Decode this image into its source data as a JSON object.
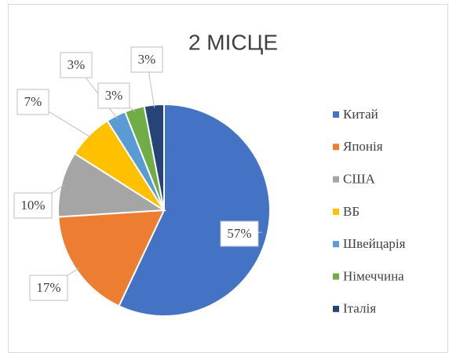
{
  "chart_data": {
    "type": "pie",
    "title": "2 МІСЦЕ",
    "categories": [
      "Китай",
      "Японія",
      "США",
      "ВБ",
      "Швейцарія",
      "Німеччина",
      "Італія"
    ],
    "values": [
      57,
      17,
      10,
      7,
      3,
      3,
      3
    ],
    "value_labels": [
      "57%",
      "17%",
      "10%",
      "7%",
      "3%",
      "3%",
      "3%"
    ],
    "colors": [
      "#4472c4",
      "#ed7d31",
      "#a5a5a5",
      "#ffc000",
      "#5b9bd5",
      "#70ad47",
      "#264478"
    ],
    "legend": "right"
  }
}
